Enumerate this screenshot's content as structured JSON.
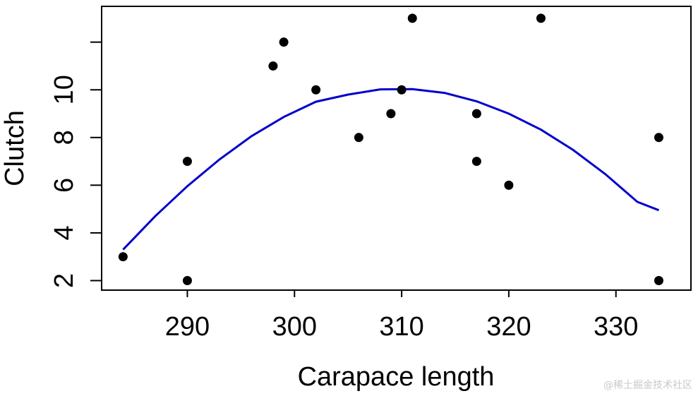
{
  "chart_data": {
    "type": "scatter",
    "title": "",
    "xlabel": "Carapace length",
    "ylabel": "Clutch",
    "xlim": [
      282,
      337
    ],
    "ylim": [
      1.6,
      13.5
    ],
    "x_ticks": [
      290,
      300,
      310,
      320,
      330
    ],
    "y_ticks": [
      2,
      4,
      6,
      8,
      10
    ],
    "grid": false,
    "points": [
      {
        "x": 284,
        "y": 3
      },
      {
        "x": 290,
        "y": 7
      },
      {
        "x": 290,
        "y": 2
      },
      {
        "x": 298,
        "y": 11
      },
      {
        "x": 299,
        "y": 12
      },
      {
        "x": 302,
        "y": 10
      },
      {
        "x": 306,
        "y": 8
      },
      {
        "x": 309,
        "y": 9
      },
      {
        "x": 310,
        "y": 10
      },
      {
        "x": 311,
        "y": 13
      },
      {
        "x": 317,
        "y": 9
      },
      {
        "x": 317,
        "y": 7
      },
      {
        "x": 320,
        "y": 6
      },
      {
        "x": 323,
        "y": 13
      },
      {
        "x": 334,
        "y": 8
      },
      {
        "x": 334,
        "y": 2
      }
    ],
    "fit_curve": {
      "type": "quadratic",
      "x": [
        284,
        287,
        290,
        293,
        296,
        299,
        302,
        305,
        308,
        311,
        314,
        317,
        320,
        323,
        326,
        329,
        332,
        334
      ],
      "y": [
        3.3,
        4.7,
        5.96,
        7.08,
        8.06,
        8.86,
        9.5,
        9.8,
        10.02,
        10.03,
        9.87,
        9.52,
        9.0,
        8.33,
        7.48,
        6.47,
        5.3,
        4.95
      ]
    },
    "colors": {
      "points": "#000000",
      "fit_curve": "#0000cc",
      "axes": "#000000"
    }
  },
  "watermark": "@稀土掘金技术社区"
}
